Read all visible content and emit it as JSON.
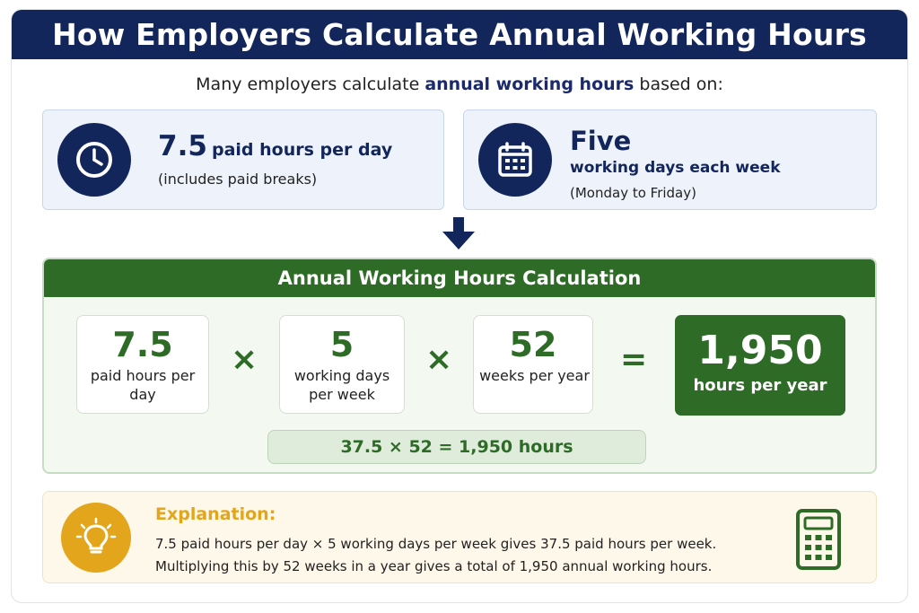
{
  "title": "How Employers Calculate Annual Working Hours",
  "intro": {
    "before": "Many employers calculate ",
    "highlight": "annual working hours",
    "after": " based on:"
  },
  "cards": {
    "daily": {
      "icon": "clock-icon",
      "value": "7.5",
      "label": "paid hours per day",
      "note": "(includes paid breaks)"
    },
    "weekly": {
      "icon": "calendar-icon",
      "value": "Five",
      "label": "working days each week",
      "note": "(Monday to Friday)"
    }
  },
  "calculation": {
    "header": "Annual Working Hours Calculation",
    "factors": [
      {
        "value": "7.5",
        "label": "paid hours per day"
      },
      {
        "value": "5",
        "label": "working days per week"
      },
      {
        "value": "52",
        "label": "weeks per year"
      }
    ],
    "operators": [
      "×",
      "×",
      "="
    ],
    "result": {
      "value": "1,950",
      "label": "hours per year"
    },
    "formula": "37.5 × 52 = 1,950 hours"
  },
  "explanation": {
    "icon": "lightbulb-icon",
    "side_icon": "calculator-icon",
    "title": "Explanation:",
    "lines": [
      "7.5 paid hours per day × 5 working days per week gives 37.5 paid hours per week.",
      "Multiplying this by 52 weeks in a year gives a total of 1,950 annual working hours."
    ]
  },
  "colors": {
    "navy": "#13265c",
    "green": "#2e6b27",
    "amber": "#e3a51c"
  }
}
